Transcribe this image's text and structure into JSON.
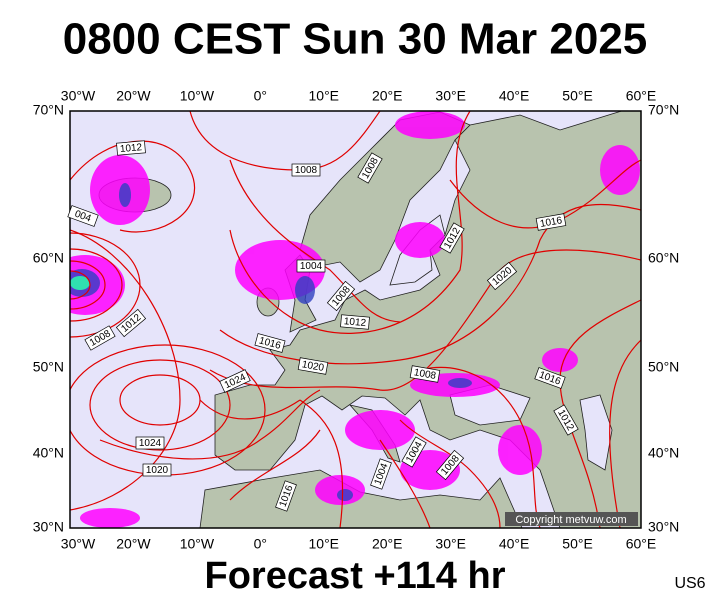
{
  "title": "0800 CEST Sun 30 Mar 2025",
  "footer": "Forecast +114 hr",
  "product_code": "US6",
  "copyright": "Copyright metvuw.com",
  "map": {
    "lon_labels": [
      "30°W",
      "20°W",
      "10°W",
      "0°",
      "10°E",
      "20°E",
      "30°E",
      "40°E",
      "50°E",
      "60°E"
    ],
    "lat_labels": [
      "70°N",
      "60°N",
      "50°N",
      "40°N",
      "30°N"
    ],
    "isobar_labels": [
      "1012",
      "1008",
      "1008",
      "004",
      "1004",
      "1008",
      "1012",
      "1008",
      "1012",
      "1016",
      "1020",
      "1024",
      "1012",
      "1016",
      "1020",
      "1016",
      "1012",
      "1008",
      "1004",
      "1004",
      "1008",
      "1024",
      "1020",
      "1016"
    ]
  }
}
